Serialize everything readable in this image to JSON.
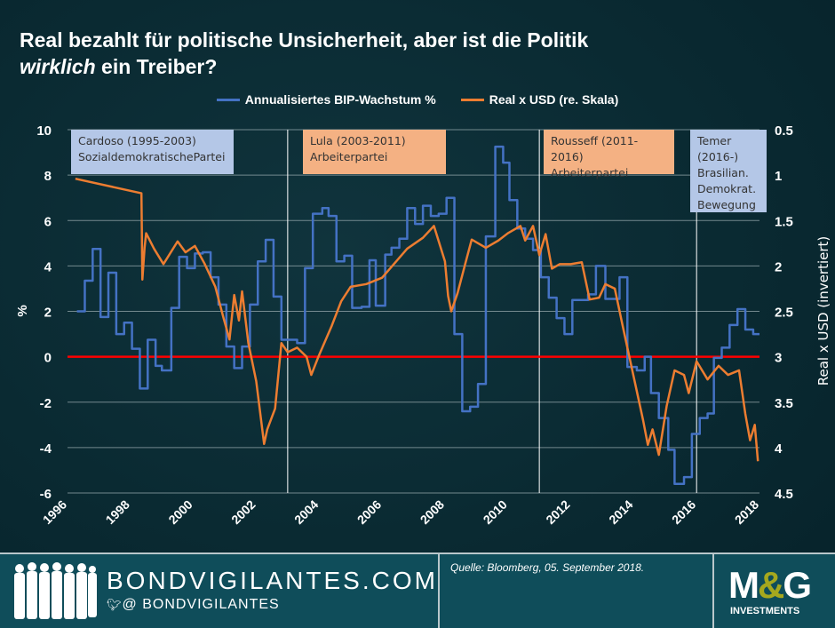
{
  "title_part1": "Real bezahlt für politische Unsicherheit, aber ist die Politik",
  "title_italic": "wirklich",
  "title_part2": " ein Treiber?",
  "colors": {
    "gdp": "#4472c4",
    "brl": "#ed7d31",
    "zero_line": "#ff0000",
    "box_blue": "#b4c7e7",
    "box_orange": "#f4b183"
  },
  "annotations": [
    {
      "lines": [
        "Cardoso (1995-2003)",
        "SozialdemokratischePartei"
      ],
      "color": "#b4c7e7"
    },
    {
      "lines": [
        "Lula (2003-2011)",
        "Arbeiterpartei"
      ],
      "color": "#f4b183"
    },
    {
      "lines": [
        "Rousseff (2011-2016)",
        "Arbeiterpartei"
      ],
      "color": "#f4b183"
    },
    {
      "lines": [
        "Temer",
        "(2016-)",
        "Brasilian.",
        "Demokrat.",
        "Bewegung"
      ],
      "color": "#b4c7e7"
    }
  ],
  "chart_data": {
    "type": "line",
    "xlabel": "",
    "ylabel": "%",
    "y2label": "Real x USD (invertiert)",
    "xlim": [
      1996,
      2018
    ],
    "ylim": [
      -6,
      10
    ],
    "y2lim": [
      0.5,
      4.5
    ],
    "y2_inverted": true,
    "grid": true,
    "legend": "top",
    "x_ticks": [
      "1996",
      "1998",
      "2000",
      "2002",
      "2004",
      "2006",
      "2008",
      "2010",
      "2012",
      "2014",
      "2016",
      "2018"
    ],
    "y_ticks": [
      "10",
      "8",
      "6",
      "4",
      "2",
      "0",
      "-2",
      "-4",
      "-6"
    ],
    "y2_ticks": [
      "0.5",
      "1",
      "1.5",
      "2",
      "2.5",
      "3",
      "3.5",
      "4",
      "4.5"
    ],
    "vertical_lines": [
      2003.0,
      2011.0,
      2016.0
    ],
    "reference_line": 0,
    "series": [
      {
        "name": "Annualisiertes BIP-Wachstum %",
        "axis": "left",
        "step": true,
        "points": [
          [
            1996.3,
            2.0
          ],
          [
            1996.55,
            3.35
          ],
          [
            1996.8,
            4.75
          ],
          [
            1997.05,
            1.75
          ],
          [
            1997.3,
            3.7
          ],
          [
            1997.55,
            1.0
          ],
          [
            1997.8,
            1.5
          ],
          [
            1998.05,
            0.35
          ],
          [
            1998.3,
            -1.4
          ],
          [
            1998.55,
            0.75
          ],
          [
            1998.8,
            -0.4
          ],
          [
            1999.0,
            -0.6
          ],
          [
            1999.3,
            2.15
          ],
          [
            1999.55,
            4.4
          ],
          [
            1999.8,
            3.9
          ],
          [
            2000.05,
            4.55
          ],
          [
            2000.3,
            4.6
          ],
          [
            2000.55,
            3.5
          ],
          [
            2000.8,
            2.3
          ],
          [
            2001.05,
            0.45
          ],
          [
            2001.3,
            -0.5
          ],
          [
            2001.55,
            0.45
          ],
          [
            2001.8,
            2.3
          ],
          [
            2002.05,
            4.2
          ],
          [
            2002.3,
            5.15
          ],
          [
            2002.55,
            2.65
          ],
          [
            2002.8,
            0.75
          ],
          [
            2003.3,
            0.6
          ],
          [
            2003.55,
            3.9
          ],
          [
            2003.8,
            6.3
          ],
          [
            2004.1,
            6.55
          ],
          [
            2004.3,
            6.2
          ],
          [
            2004.55,
            4.2
          ],
          [
            2004.8,
            4.45
          ],
          [
            2005.05,
            2.15
          ],
          [
            2005.35,
            2.2
          ],
          [
            2005.6,
            4.25
          ],
          [
            2005.8,
            2.25
          ],
          [
            2006.1,
            4.5
          ],
          [
            2006.3,
            4.8
          ],
          [
            2006.55,
            5.2
          ],
          [
            2006.8,
            6.55
          ],
          [
            2007.05,
            5.85
          ],
          [
            2007.3,
            6.65
          ],
          [
            2007.55,
            6.2
          ],
          [
            2007.8,
            6.3
          ],
          [
            2008.05,
            7.0
          ],
          [
            2008.3,
            1.0
          ],
          [
            2008.55,
            -2.4
          ],
          [
            2008.8,
            -2.2
          ],
          [
            2009.05,
            -1.2
          ],
          [
            2009.3,
            5.3
          ],
          [
            2009.6,
            9.25
          ],
          [
            2009.85,
            8.55
          ],
          [
            2010.05,
            6.9
          ],
          [
            2010.3,
            5.65
          ],
          [
            2010.55,
            5.2
          ],
          [
            2010.8,
            4.7
          ],
          [
            2011.05,
            3.5
          ],
          [
            2011.3,
            2.6
          ],
          [
            2011.55,
            1.7
          ],
          [
            2011.8,
            1.0
          ],
          [
            2012.05,
            2.5
          ],
          [
            2012.55,
            2.75
          ],
          [
            2012.8,
            4.0
          ],
          [
            2013.1,
            2.55
          ],
          [
            2013.55,
            3.5
          ],
          [
            2013.8,
            -0.45
          ],
          [
            2014.1,
            -0.6
          ],
          [
            2014.35,
            0.0
          ],
          [
            2014.55,
            -1.6
          ],
          [
            2014.8,
            -2.7
          ],
          [
            2015.1,
            -4.1
          ],
          [
            2015.3,
            -5.6
          ],
          [
            2015.6,
            -5.3
          ],
          [
            2015.85,
            -3.4
          ],
          [
            2016.1,
            -2.7
          ],
          [
            2016.35,
            -2.5
          ],
          [
            2016.55,
            -0.05
          ],
          [
            2016.8,
            0.4
          ],
          [
            2017.05,
            1.4
          ],
          [
            2017.3,
            2.1
          ],
          [
            2017.55,
            1.2
          ],
          [
            2017.8,
            1.0
          ],
          [
            2018.0,
            1.0
          ]
        ]
      },
      {
        "name": "Real x USD (re. Skala)",
        "axis": "right",
        "step": false,
        "points": [
          [
            1996.25,
            1.04
          ],
          [
            1998.35,
            1.2
          ],
          [
            1998.38,
            2.15
          ],
          [
            1998.45,
            1.8
          ],
          [
            1998.5,
            1.64
          ],
          [
            1998.75,
            1.81
          ],
          [
            1999.05,
            1.98
          ],
          [
            1999.5,
            1.73
          ],
          [
            1999.75,
            1.85
          ],
          [
            2000.05,
            1.78
          ],
          [
            2000.35,
            1.97
          ],
          [
            2000.7,
            2.23
          ],
          [
            2000.95,
            2.56
          ],
          [
            2001.15,
            2.81
          ],
          [
            2001.3,
            2.32
          ],
          [
            2001.45,
            2.6
          ],
          [
            2001.55,
            2.28
          ],
          [
            2001.75,
            2.85
          ],
          [
            2002.0,
            3.27
          ],
          [
            2002.25,
            3.96
          ],
          [
            2002.35,
            3.8
          ],
          [
            2002.6,
            3.57
          ],
          [
            2002.8,
            2.85
          ],
          [
            2003.0,
            2.95
          ],
          [
            2003.3,
            2.9
          ],
          [
            2003.6,
            3.0
          ],
          [
            2003.75,
            3.2
          ],
          [
            2004.0,
            2.98
          ],
          [
            2004.4,
            2.66
          ],
          [
            2004.7,
            2.39
          ],
          [
            2005.0,
            2.23
          ],
          [
            2005.5,
            2.2
          ],
          [
            2006.0,
            2.13
          ],
          [
            2006.4,
            1.97
          ],
          [
            2006.8,
            1.81
          ],
          [
            2007.3,
            1.69
          ],
          [
            2007.65,
            1.56
          ],
          [
            2008.0,
            1.95
          ],
          [
            2008.1,
            2.33
          ],
          [
            2008.2,
            2.5
          ],
          [
            2008.4,
            2.3
          ],
          [
            2008.65,
            1.97
          ],
          [
            2008.85,
            1.71
          ],
          [
            2009.3,
            1.8
          ],
          [
            2009.7,
            1.72
          ],
          [
            2010.0,
            1.64
          ],
          [
            2010.4,
            1.56
          ],
          [
            2010.55,
            1.72
          ],
          [
            2010.8,
            1.56
          ],
          [
            2011.0,
            1.88
          ],
          [
            2011.2,
            1.65
          ],
          [
            2011.4,
            2.03
          ],
          [
            2011.65,
            1.98
          ],
          [
            2012.0,
            1.98
          ],
          [
            2012.35,
            1.96
          ],
          [
            2012.6,
            2.37
          ],
          [
            2012.9,
            2.35
          ],
          [
            2013.1,
            2.2
          ],
          [
            2013.4,
            2.25
          ],
          [
            2013.65,
            2.66
          ],
          [
            2013.85,
            2.98
          ],
          [
            2014.05,
            3.3
          ],
          [
            2014.3,
            3.7
          ],
          [
            2014.45,
            3.97
          ],
          [
            2014.6,
            3.8
          ],
          [
            2014.8,
            4.08
          ],
          [
            2015.05,
            3.54
          ],
          [
            2015.3,
            3.15
          ],
          [
            2015.6,
            3.2
          ],
          [
            2015.75,
            3.4
          ],
          [
            2016.0,
            3.05
          ],
          [
            2016.35,
            3.25
          ],
          [
            2016.7,
            3.1
          ],
          [
            2017.0,
            3.2
          ],
          [
            2017.35,
            3.15
          ],
          [
            2017.55,
            3.63
          ],
          [
            2017.7,
            3.92
          ],
          [
            2017.85,
            3.75
          ],
          [
            2017.95,
            4.15
          ]
        ]
      }
    ]
  },
  "footer": {
    "site": "BONDVIGILANTES.COM",
    "handle": "@ BONDVIGILANTES",
    "source": "Quelle: Bloomberg, 05. September 2018.",
    "brand_m": "M",
    "brand_amp": "&",
    "brand_g": "G",
    "brand_sub": "INVESTMENTS"
  }
}
